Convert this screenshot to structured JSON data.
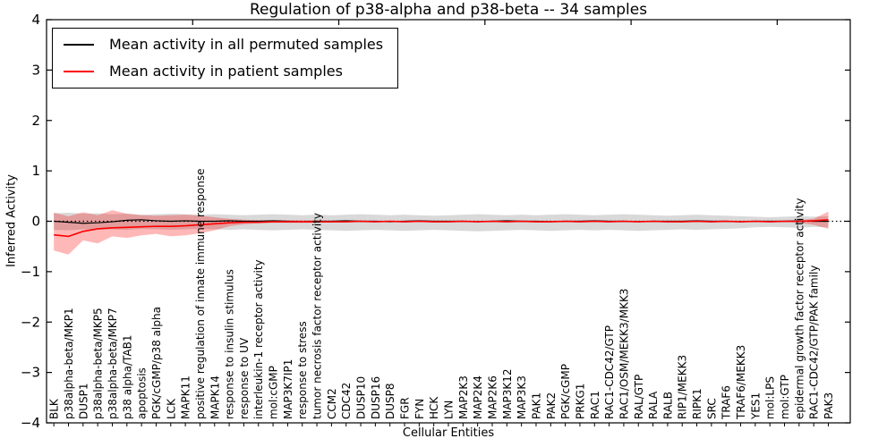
{
  "chart_data": {
    "type": "line",
    "title": "Regulation of p38-alpha and p38-beta -- 34 samples",
    "xlabel": "Cellular Entities",
    "ylabel": "Inferred Activity",
    "ylim": [
      -4,
      4
    ],
    "xlim": [
      0,
      55
    ],
    "yticks": [
      4,
      3,
      2,
      1,
      0,
      -1,
      -2,
      -3,
      -4
    ],
    "xticks_top": [
      10,
      20,
      30,
      40,
      50
    ],
    "grid": false,
    "legend_position": "upper left",
    "zero_line": {
      "y": 0,
      "style": "dotted",
      "color": "#000000"
    },
    "categories": [
      "BLK",
      "p38alpha-beta/MKP1",
      "DUSP1",
      "p38alpha-beta/MKP5",
      "p38alpha-beta/MKP7",
      "p38 alpha/TAB1",
      "apoptosis",
      "PGK/cGMP/p38 alpha",
      "LCK",
      "MAPK11",
      "positive regulation of innate immune response",
      "MAPK14",
      "response to insulin stimulus",
      "response to UV",
      "interleukin-1 receptor activity",
      "mol:cGMP",
      "MAP3K7IP1",
      "response to stress",
      "tumor necrosis factor receptor activity",
      "CCM2",
      "CDC42",
      "DUSP10",
      "DUSP16",
      "DUSP8",
      "FGR",
      "FYN",
      "HCK",
      "LYN",
      "MAP2K3",
      "MAP2K4",
      "MAP2K6",
      "MAP3K12",
      "MAP3K3",
      "PAK1",
      "PAK2",
      "PGK/cGMP",
      "PRKG1",
      "RAC1",
      "RAC1-CDC42/GTP",
      "RAC1/OSM/MEKK3/MKK3",
      "RAL/GTP",
      "RALA",
      "RALB",
      "RIP1/MEKK3",
      "RIPK1",
      "SRC",
      "TRAF6",
      "TRAF6/MEKK3",
      "YES1",
      "mol:LPS",
      "mol:GTP",
      "epidermal growth factor receptor activity",
      "RAC1-CDC42/GTP/PAK family",
      "PAK3"
    ],
    "legend": [
      {
        "label": "Mean activity in all permuted samples",
        "color": "#000000"
      },
      {
        "label": "Mean activity in patient samples",
        "color": "#ff0000"
      }
    ],
    "series": [
      {
        "name": "Mean activity in all permuted samples",
        "color": "#000000",
        "band_color": "rgba(0,0,0,0.15)",
        "values": [
          0.0,
          -0.02,
          -0.04,
          -0.03,
          -0.01,
          0.02,
          0.03,
          0.01,
          0.0,
          0.01,
          0.0,
          0.0,
          0.01,
          0.0,
          0.0,
          0.01,
          0.0,
          -0.01,
          0.0,
          0.0,
          0.01,
          0.0,
          0.0,
          -0.01,
          0.0,
          0.01,
          0.0,
          0.0,
          0.0,
          -0.01,
          0.0,
          0.01,
          0.0,
          0.0,
          -0.01,
          0.0,
          0.0,
          0.01,
          0.0,
          0.0,
          -0.01,
          0.0,
          0.0,
          0.0,
          0.01,
          0.0,
          0.0,
          -0.01,
          0.0,
          0.0,
          0.0,
          0.01,
          0.0,
          0.0
        ],
        "band_hi": [
          0.16,
          0.17,
          0.15,
          0.16,
          0.14,
          0.15,
          0.13,
          0.14,
          0.15,
          0.14,
          0.13,
          0.14,
          0.13,
          0.12,
          0.13,
          0.14,
          0.13,
          0.12,
          0.13,
          0.12,
          0.13,
          0.14,
          0.13,
          0.12,
          0.13,
          0.12,
          0.11,
          0.12,
          0.13,
          0.14,
          0.13,
          0.12,
          0.13,
          0.12,
          0.13,
          0.14,
          0.13,
          0.12,
          0.13,
          0.14,
          0.13,
          0.12,
          0.11,
          0.12,
          0.13,
          0.12,
          0.11,
          0.1,
          0.09,
          0.08,
          0.09,
          0.1,
          0.09,
          0.1
        ],
        "band_lo": [
          -0.17,
          -0.18,
          -0.16,
          -0.17,
          -0.16,
          -0.17,
          -0.15,
          -0.16,
          -0.17,
          -0.16,
          -0.15,
          -0.16,
          -0.17,
          -0.16,
          -0.17,
          -0.18,
          -0.17,
          -0.16,
          -0.17,
          -0.18,
          -0.19,
          -0.18,
          -0.17,
          -0.18,
          -0.19,
          -0.18,
          -0.17,
          -0.18,
          -0.19,
          -0.2,
          -0.19,
          -0.18,
          -0.17,
          -0.18,
          -0.19,
          -0.18,
          -0.17,
          -0.18,
          -0.17,
          -0.18,
          -0.19,
          -0.18,
          -0.17,
          -0.16,
          -0.17,
          -0.16,
          -0.15,
          -0.14,
          -0.12,
          -0.11,
          -0.12,
          -0.13,
          -0.11,
          -0.12
        ]
      },
      {
        "name": "Mean activity in patient samples",
        "color": "#ff0000",
        "band_color": "rgba(255,0,0,0.28)",
        "values": [
          -0.27,
          -0.3,
          -0.2,
          -0.15,
          -0.13,
          -0.12,
          -0.11,
          -0.1,
          -0.1,
          -0.09,
          -0.07,
          -0.05,
          -0.03,
          -0.02,
          -0.02,
          -0.01,
          -0.01,
          -0.01,
          -0.01,
          -0.01,
          -0.01,
          0.0,
          -0.01,
          0.0,
          -0.01,
          0.0,
          -0.01,
          -0.01,
          0.0,
          -0.01,
          0.0,
          -0.01,
          0.0,
          -0.01,
          -0.01,
          0.0,
          -0.01,
          0.0,
          -0.01,
          0.0,
          -0.01,
          0.0,
          -0.01,
          -0.01,
          0.0,
          -0.01,
          0.0,
          -0.01,
          0.0,
          -0.01,
          0.0,
          0.0,
          0.01,
          0.03
        ],
        "band_hi": [
          0.17,
          0.1,
          0.18,
          0.12,
          0.22,
          0.15,
          0.12,
          0.11,
          0.12,
          0.13,
          0.11,
          0.08,
          0.05,
          0.03,
          0.02,
          0.02,
          0.02,
          0.02,
          0.02,
          0.01,
          0.01,
          0.01,
          0.01,
          0.01,
          0.01,
          0.01,
          0.01,
          0.01,
          0.01,
          0.01,
          0.01,
          0.01,
          0.01,
          0.01,
          0.01,
          0.01,
          0.01,
          0.01,
          0.01,
          0.01,
          0.01,
          0.01,
          0.01,
          0.01,
          0.01,
          0.01,
          0.01,
          0.01,
          0.01,
          0.01,
          0.01,
          0.02,
          0.05,
          0.19
        ],
        "band_lo": [
          -0.58,
          -0.66,
          -0.38,
          -0.44,
          -0.3,
          -0.33,
          -0.28,
          -0.25,
          -0.3,
          -0.28,
          -0.24,
          -0.18,
          -0.1,
          -0.06,
          -0.04,
          -0.03,
          -0.03,
          -0.03,
          -0.03,
          -0.02,
          -0.02,
          -0.02,
          -0.02,
          -0.02,
          -0.02,
          -0.02,
          -0.02,
          -0.02,
          -0.02,
          -0.02,
          -0.02,
          -0.02,
          -0.02,
          -0.02,
          -0.02,
          -0.02,
          -0.02,
          -0.02,
          -0.02,
          -0.02,
          -0.02,
          -0.02,
          -0.02,
          -0.02,
          -0.02,
          -0.02,
          -0.02,
          -0.02,
          -0.02,
          -0.02,
          -0.02,
          -0.03,
          -0.07,
          -0.15
        ]
      }
    ]
  }
}
